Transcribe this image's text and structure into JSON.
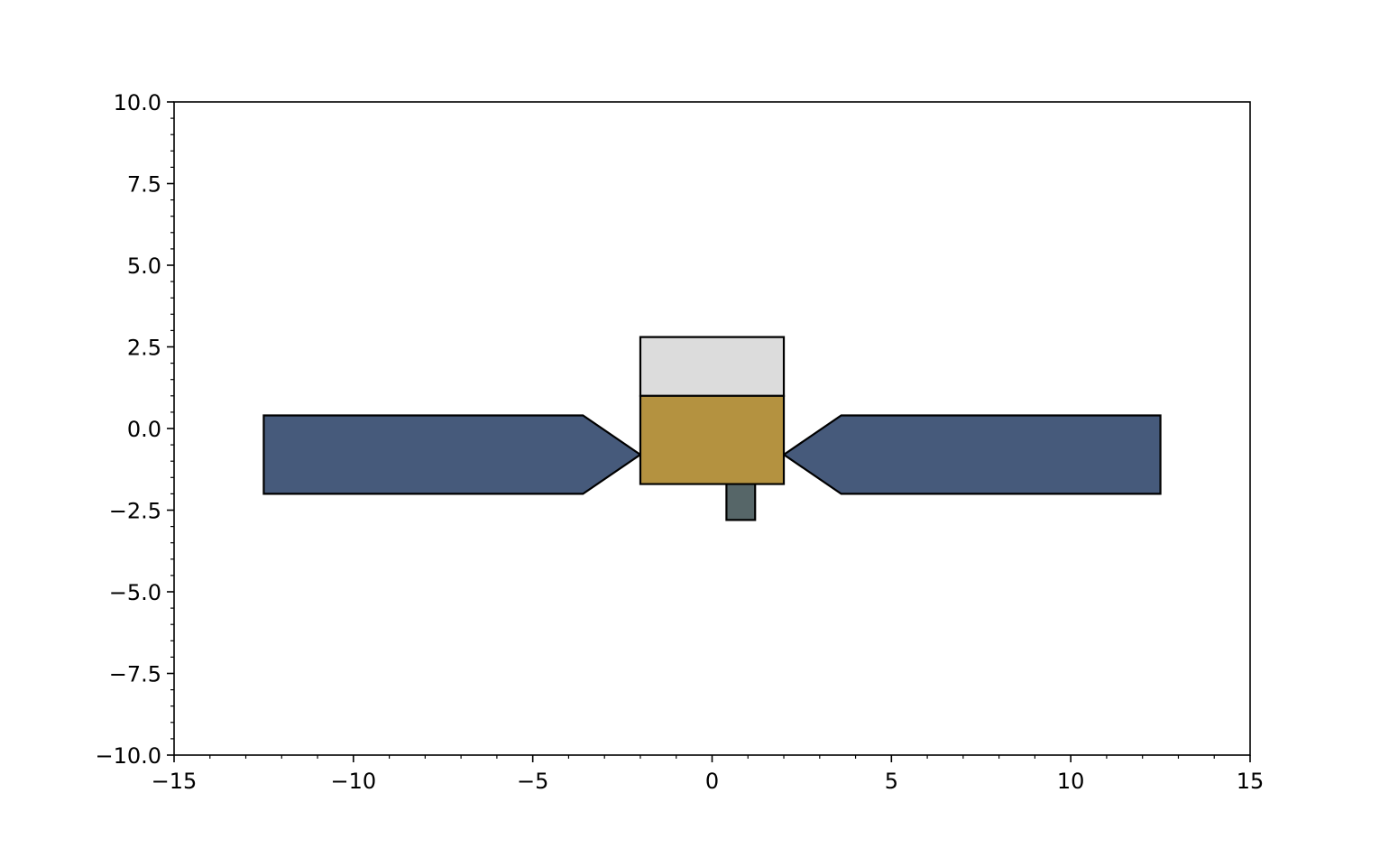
{
  "chart_data": {
    "type": "diagram",
    "title": "",
    "xlabel": "",
    "ylabel": "",
    "xlim": [
      -15,
      15
    ],
    "ylim": [
      -10,
      10
    ],
    "grid": false,
    "x_major_ticks": [
      -15,
      -10,
      -5,
      0,
      5,
      10,
      15
    ],
    "x_tick_labels": [
      "−15",
      "−10",
      "−5",
      "0",
      "5",
      "10",
      "15"
    ],
    "x_minor_step": 1,
    "y_major_ticks": [
      -10,
      -7.5,
      -5,
      -2.5,
      0,
      2.5,
      5,
      7.5,
      10
    ],
    "y_tick_labels": [
      "−10.0",
      "−7.5",
      "−5.0",
      "−2.5",
      "0.0",
      "2.5",
      "5.0",
      "7.5",
      "10.0"
    ],
    "y_minor_step": 0.5,
    "shapes": [
      {
        "name": "left-solar-panel",
        "fill": "#465a7b",
        "points": [
          [
            -12.5,
            0.4
          ],
          [
            -3.6,
            0.4
          ],
          [
            -2.0,
            -0.8
          ],
          [
            -3.6,
            -2.0
          ],
          [
            -12.5,
            -2.0
          ]
        ]
      },
      {
        "name": "right-solar-panel",
        "fill": "#465a7b",
        "points": [
          [
            12.5,
            0.4
          ],
          [
            3.6,
            0.4
          ],
          [
            2.0,
            -0.8
          ],
          [
            3.6,
            -2.0
          ],
          [
            12.5,
            -2.0
          ]
        ]
      },
      {
        "name": "body-top-section",
        "fill": "#dcdcdc",
        "points": [
          [
            -2.0,
            1.0
          ],
          [
            2.0,
            1.0
          ],
          [
            2.0,
            2.8
          ],
          [
            -2.0,
            2.8
          ]
        ]
      },
      {
        "name": "body-main-section",
        "fill": "#b49240",
        "points": [
          [
            -2.0,
            -1.7
          ],
          [
            2.0,
            -1.7
          ],
          [
            2.0,
            1.0
          ],
          [
            -2.0,
            1.0
          ]
        ]
      },
      {
        "name": "bottom-nozzle",
        "fill": "#566668",
        "points": [
          [
            0.4,
            -2.8
          ],
          [
            1.2,
            -2.8
          ],
          [
            1.2,
            -1.7
          ],
          [
            0.4,
            -1.7
          ]
        ]
      }
    ]
  }
}
